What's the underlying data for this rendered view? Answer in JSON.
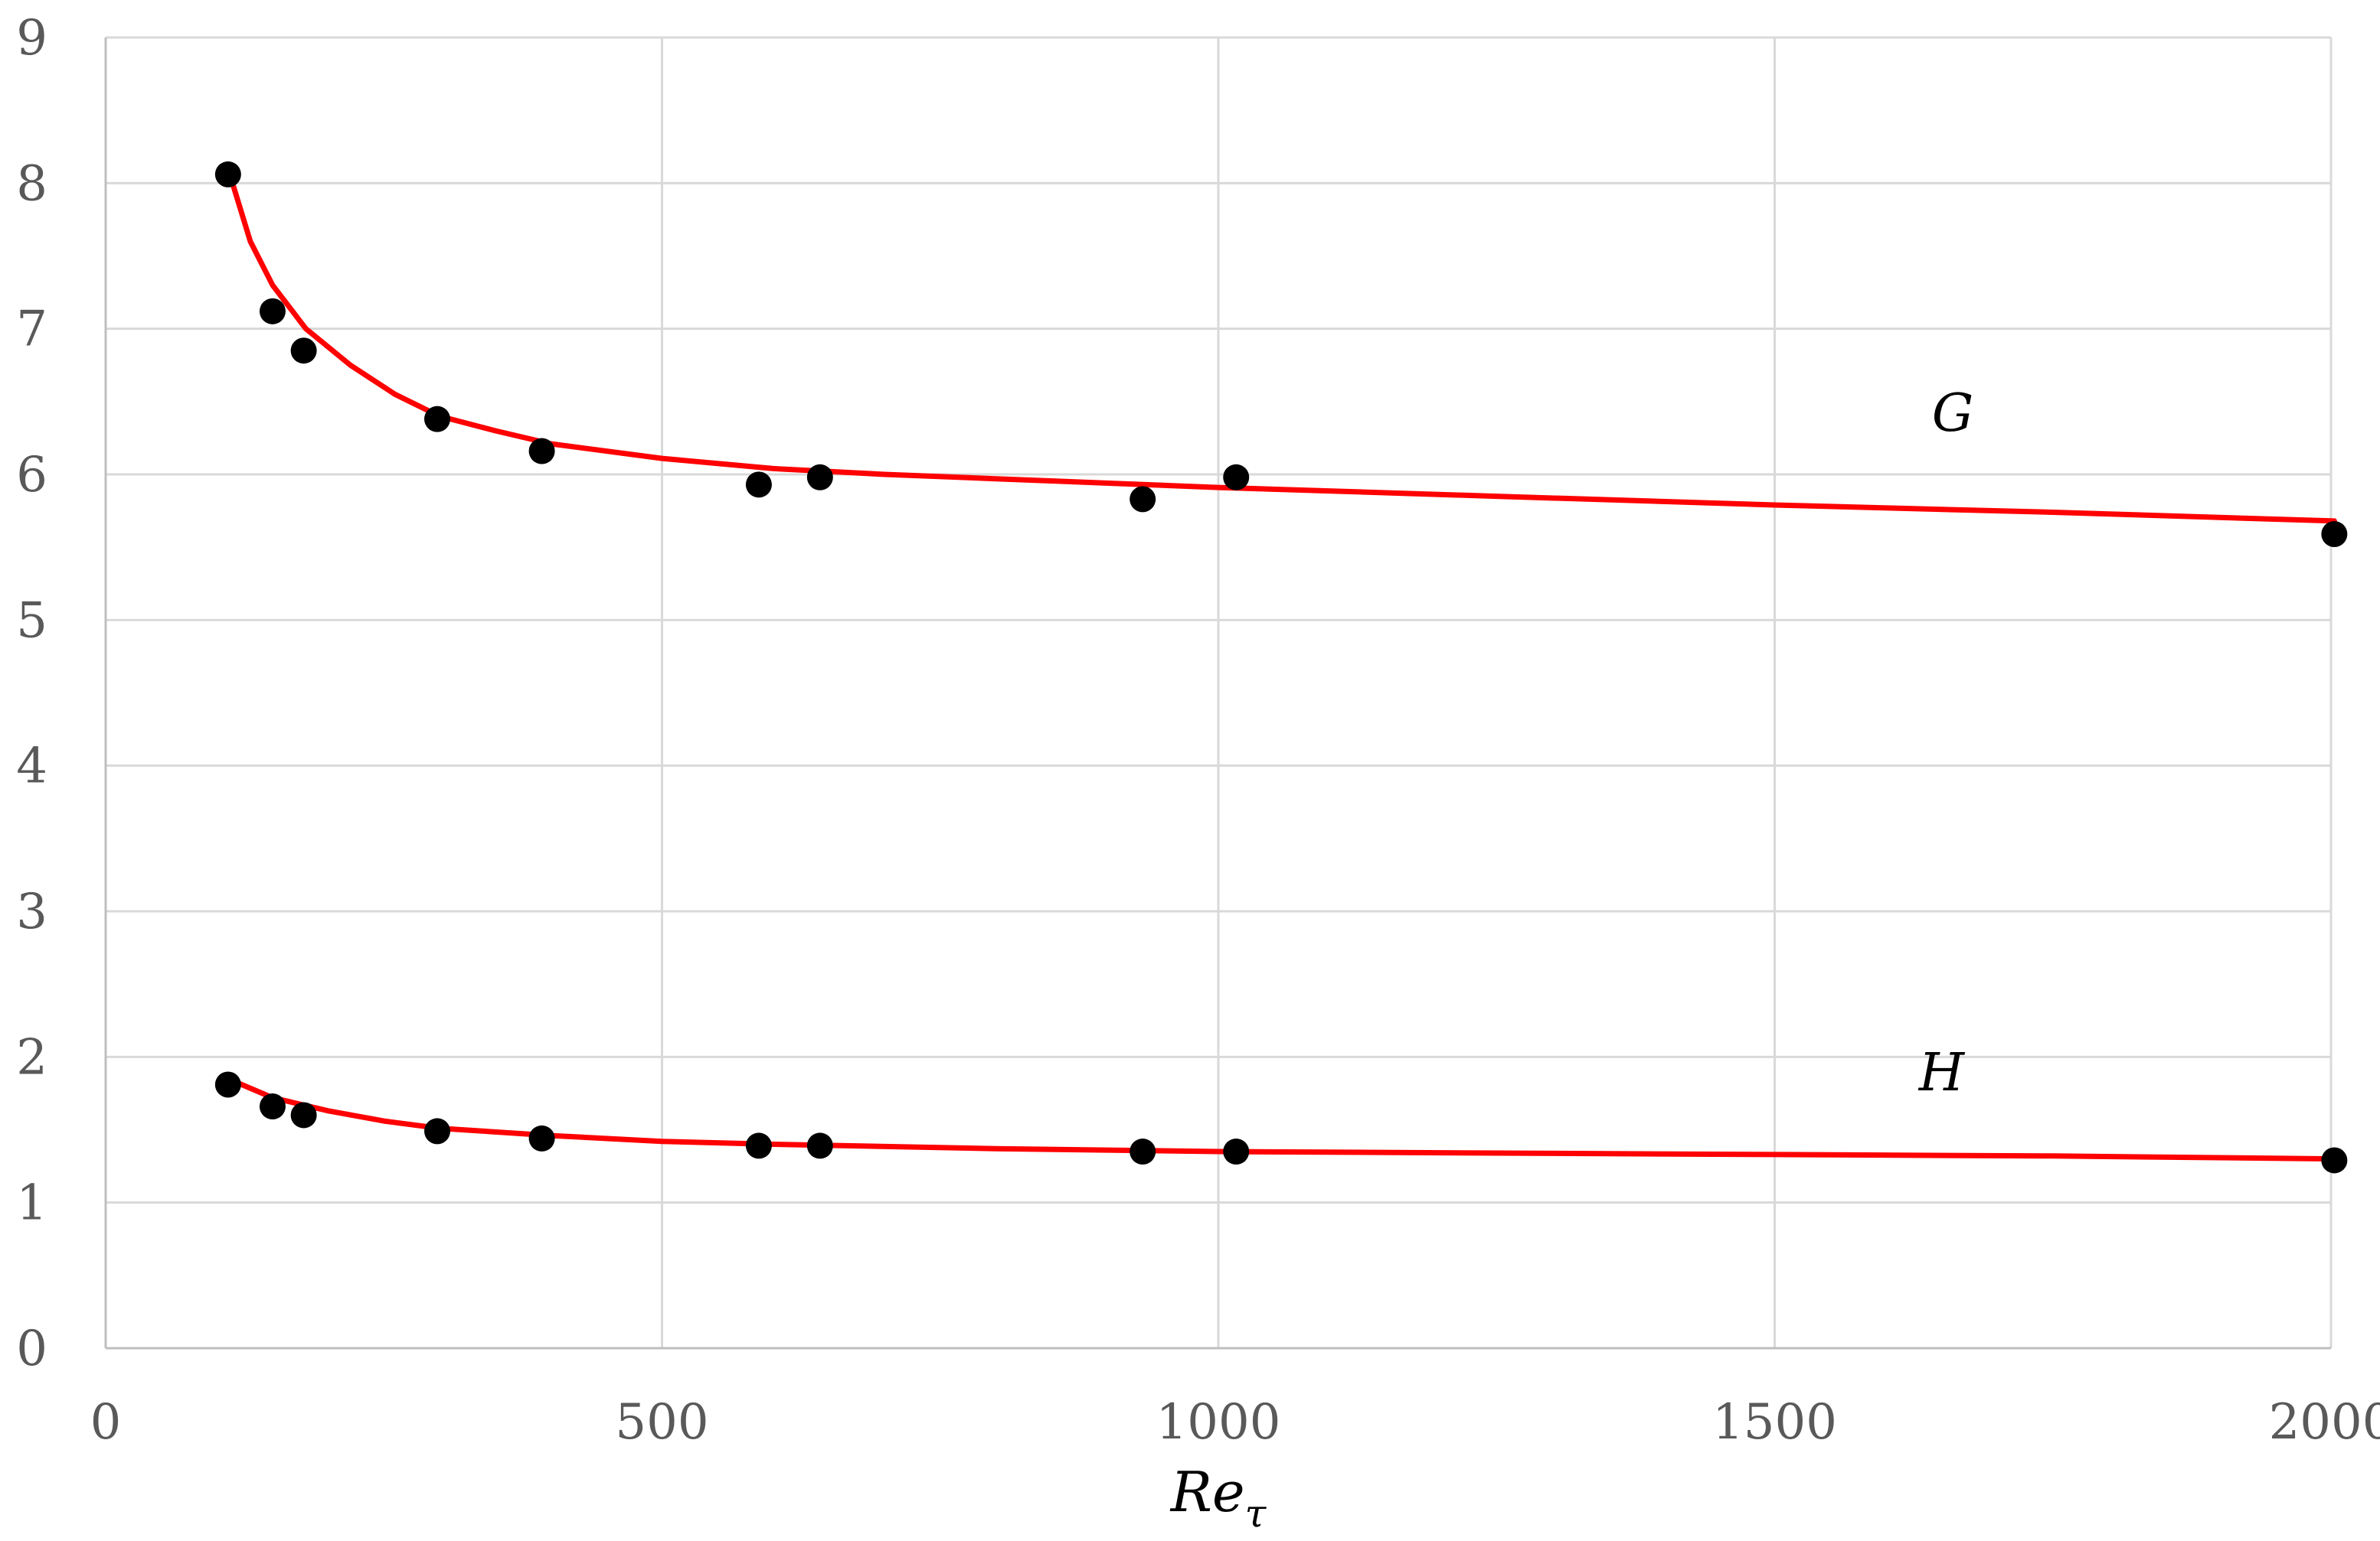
{
  "chart_data": {
    "type": "scatter",
    "xlabel": "Re",
    "xlabel_subscript": "τ",
    "ylabel": "",
    "xlim": [
      0,
      2000
    ],
    "ylim": [
      0,
      9
    ],
    "x_ticks": [
      0,
      500,
      1000,
      1500,
      2000
    ],
    "y_ticks": [
      0,
      1,
      2,
      3,
      4,
      5,
      6,
      7,
      8,
      9
    ],
    "grid": true,
    "colors": {
      "fit": "#ff0000",
      "points": "#000000",
      "grid": "#d9d9d9",
      "axis": "#bfbfbf"
    },
    "series": [
      {
        "name": "G",
        "points": [
          {
            "x": 110,
            "y": 8.06
          },
          {
            "x": 150,
            "y": 7.12
          },
          {
            "x": 178,
            "y": 6.85
          },
          {
            "x": 298,
            "y": 6.38
          },
          {
            "x": 392,
            "y": 6.16
          },
          {
            "x": 587,
            "y": 5.93
          },
          {
            "x": 642,
            "y": 5.98
          },
          {
            "x": 932,
            "y": 5.83
          },
          {
            "x": 1016,
            "y": 5.98
          },
          {
            "x": 2003,
            "y": 5.59
          }
        ],
        "fit": [
          {
            "x": 110,
            "y": 8.1
          },
          {
            "x": 130,
            "y": 7.6
          },
          {
            "x": 150,
            "y": 7.3
          },
          {
            "x": 180,
            "y": 7.0
          },
          {
            "x": 220,
            "y": 6.75
          },
          {
            "x": 260,
            "y": 6.55
          },
          {
            "x": 300,
            "y": 6.4
          },
          {
            "x": 350,
            "y": 6.3
          },
          {
            "x": 400,
            "y": 6.21
          },
          {
            "x": 500,
            "y": 6.11
          },
          {
            "x": 600,
            "y": 6.04
          },
          {
            "x": 700,
            "y": 6.0
          },
          {
            "x": 800,
            "y": 5.97
          },
          {
            "x": 1000,
            "y": 5.91
          },
          {
            "x": 1250,
            "y": 5.85
          },
          {
            "x": 1500,
            "y": 5.79
          },
          {
            "x": 1750,
            "y": 5.74
          },
          {
            "x": 2003,
            "y": 5.68
          }
        ],
        "label_at": {
          "x": 1660,
          "y": 6.3
        }
      },
      {
        "name": "H",
        "points": [
          {
            "x": 110,
            "y": 1.81
          },
          {
            "x": 150,
            "y": 1.66
          },
          {
            "x": 178,
            "y": 1.6
          },
          {
            "x": 298,
            "y": 1.49
          },
          {
            "x": 392,
            "y": 1.44
          },
          {
            "x": 587,
            "y": 1.39
          },
          {
            "x": 642,
            "y": 1.39
          },
          {
            "x": 932,
            "y": 1.35
          },
          {
            "x": 1016,
            "y": 1.35
          },
          {
            "x": 2003,
            "y": 1.29
          }
        ],
        "fit": [
          {
            "x": 110,
            "y": 1.85
          },
          {
            "x": 150,
            "y": 1.72
          },
          {
            "x": 200,
            "y": 1.63
          },
          {
            "x": 250,
            "y": 1.56
          },
          {
            "x": 300,
            "y": 1.51
          },
          {
            "x": 400,
            "y": 1.46
          },
          {
            "x": 500,
            "y": 1.42
          },
          {
            "x": 600,
            "y": 1.4
          },
          {
            "x": 800,
            "y": 1.37
          },
          {
            "x": 1000,
            "y": 1.35
          },
          {
            "x": 1250,
            "y": 1.34
          },
          {
            "x": 1500,
            "y": 1.33
          },
          {
            "x": 1750,
            "y": 1.32
          },
          {
            "x": 2003,
            "y": 1.3
          }
        ],
        "label_at": {
          "x": 1650,
          "y": 1.77
        }
      }
    ]
  }
}
